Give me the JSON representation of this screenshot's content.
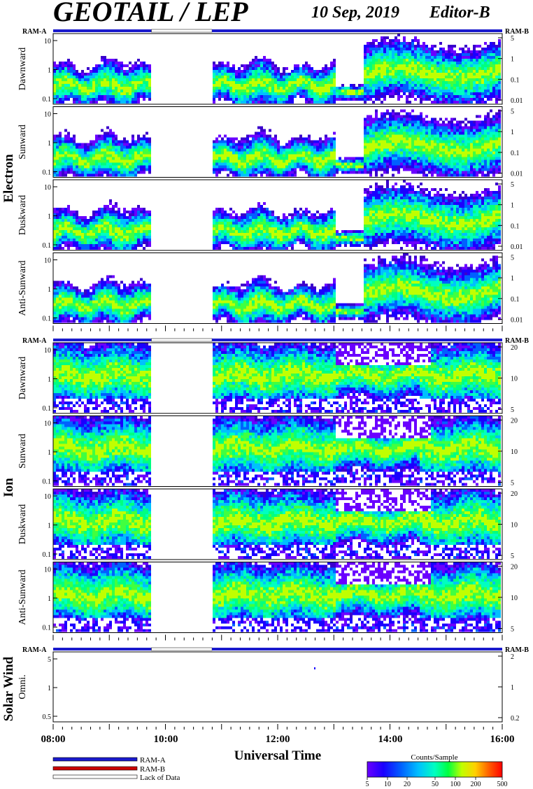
{
  "header": {
    "title": "GEOTAIL / LEP",
    "date": "10 Sep, 2019",
    "editor": "Editor-B"
  },
  "colors": {
    "ram_a": "#1a1acc",
    "ram_b": "#cc0000",
    "lack": "#ffffff",
    "colorbar": [
      "#6a00ff",
      "#1a00ff",
      "#0060ff",
      "#00c0ff",
      "#00ffc0",
      "#00ff40",
      "#c0ff00",
      "#ffd000",
      "#ff6000",
      "#ff0000"
    ]
  },
  "chart_data": {
    "type": "heatmap",
    "xaxis": {
      "label": "Universal Time",
      "ticks": [
        "08:00",
        "10:00",
        "12:00",
        "14:00",
        "16:00"
      ],
      "range_hours": [
        8,
        16
      ]
    },
    "data_gaps_hours": [
      [
        9.75,
        10.83
      ]
    ],
    "colorbar": {
      "title": "Counts/Sample",
      "scale": "log",
      "ticks": [
        "5",
        "10",
        "20",
        "50",
        "100",
        "200",
        "500"
      ]
    },
    "legend": {
      "items": [
        "RAM-A",
        "RAM-B",
        "Lack of Data"
      ]
    },
    "groups": [
      {
        "name": "Electron",
        "ram_left": "RAM-A",
        "ram_right": "RAM-B",
        "panels": [
          {
            "label": "Dawnward",
            "left_ticks": [
              "10",
              "1",
              "0.1"
            ],
            "right_ticks": [
              "5",
              "1",
              "0.1",
              "0.01"
            ]
          },
          {
            "label": "Sunward",
            "left_ticks": [
              "10",
              "1",
              "0.1"
            ],
            "right_ticks": [
              "5",
              "1",
              "0.1",
              "0.01"
            ]
          },
          {
            "label": "Duskward",
            "left_ticks": [
              "10",
              "1",
              "0.1"
            ],
            "right_ticks": [
              "5",
              "1",
              "0.1",
              "0.01"
            ]
          },
          {
            "label": "Anti-Sunward",
            "left_ticks": [
              "10",
              "1",
              "0.1"
            ],
            "right_ticks": [
              "5",
              "1",
              "0.1",
              "0.01"
            ]
          }
        ]
      },
      {
        "name": "Ion",
        "ram_left": "RAM-A",
        "ram_right": "RAM-B",
        "panels": [
          {
            "label": "Dawnward",
            "left_ticks": [
              "10",
              "1",
              "0.1"
            ],
            "right_ticks": [
              "20",
              "10",
              "5"
            ]
          },
          {
            "label": "Sunward",
            "left_ticks": [
              "10",
              "1",
              "0.1"
            ],
            "right_ticks": [
              "20",
              "10",
              "5"
            ]
          },
          {
            "label": "Duskward",
            "left_ticks": [
              "10",
              "1",
              "0.1"
            ],
            "right_ticks": [
              "20",
              "10",
              "5"
            ]
          },
          {
            "label": "Anti-Sunward",
            "left_ticks": [
              "10",
              "1",
              "0.1"
            ],
            "right_ticks": [
              "20",
              "10",
              "5"
            ]
          }
        ]
      },
      {
        "name": "Solar Wind",
        "ram_left": "RAM-A",
        "ram_right": "RAM-B",
        "panels": [
          {
            "label": "Omni.",
            "left_ticks": [
              "5",
              "1",
              "0.5"
            ],
            "right_ticks": [
              "2",
              "1",
              "0.2"
            ]
          }
        ]
      }
    ]
  }
}
